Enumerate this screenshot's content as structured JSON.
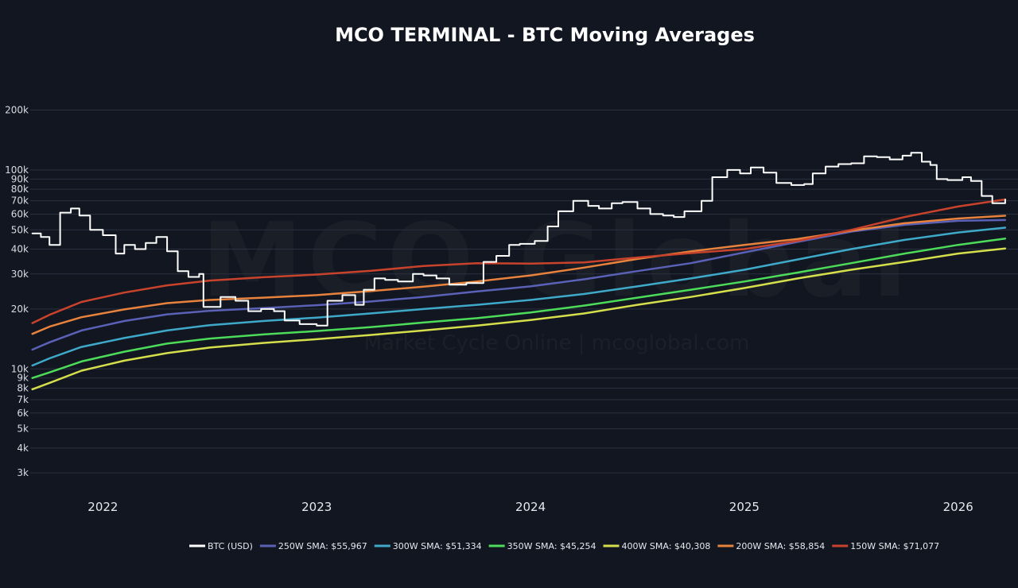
{
  "chart_data": {
    "type": "line",
    "title": "MCO TERMINAL - BTC Moving Averages",
    "watermark": {
      "main": "MCO Global",
      "sub": "Market Cycle Online | mcoglobal.com"
    },
    "y_scale": "log",
    "ylim": [
      2500,
      260000
    ],
    "xlim": [
      2021.66,
      2026.28
    ],
    "grid": true,
    "legend_position": "bottom",
    "y_ticks": [
      {
        "value": 3000,
        "label": "3k"
      },
      {
        "value": 4000,
        "label": "4k"
      },
      {
        "value": 5000,
        "label": "5k"
      },
      {
        "value": 6000,
        "label": "6k"
      },
      {
        "value": 7000,
        "label": "7k"
      },
      {
        "value": 8000,
        "label": "8k"
      },
      {
        "value": 9000,
        "label": "9k"
      },
      {
        "value": 10000,
        "label": "10k"
      },
      {
        "value": 20000,
        "label": "20k"
      },
      {
        "value": 30000,
        "label": "30k"
      },
      {
        "value": 40000,
        "label": "40k"
      },
      {
        "value": 50000,
        "label": "50k"
      },
      {
        "value": 60000,
        "label": "60k"
      },
      {
        "value": 70000,
        "label": "70k"
      },
      {
        "value": 80000,
        "label": "80k"
      },
      {
        "value": 90000,
        "label": "90k"
      },
      {
        "value": 100000,
        "label": "100k"
      },
      {
        "value": 200000,
        "label": "200k"
      }
    ],
    "x_ticks": [
      {
        "value": 2022.0,
        "label": "2022"
      },
      {
        "value": 2023.0,
        "label": "2023"
      },
      {
        "value": 2024.0,
        "label": "2024"
      },
      {
        "value": 2025.0,
        "label": "2025"
      },
      {
        "value": 2026.0,
        "label": "2026"
      }
    ],
    "series": [
      {
        "name": "BTC (USD)",
        "color": "#ffffff",
        "width": 2,
        "points": [
          [
            2021.67,
            48000
          ],
          [
            2021.71,
            46000
          ],
          [
            2021.75,
            42000
          ],
          [
            2021.8,
            61000
          ],
          [
            2021.85,
            64000
          ],
          [
            2021.89,
            59000
          ],
          [
            2021.94,
            50000
          ],
          [
            2022.0,
            47000
          ],
          [
            2022.06,
            38000
          ],
          [
            2022.1,
            42000
          ],
          [
            2022.15,
            40000
          ],
          [
            2022.2,
            43000
          ],
          [
            2022.25,
            46000
          ],
          [
            2022.3,
            39000
          ],
          [
            2022.35,
            31000
          ],
          [
            2022.4,
            29000
          ],
          [
            2022.45,
            30000
          ],
          [
            2022.47,
            20500
          ],
          [
            2022.55,
            23000
          ],
          [
            2022.62,
            22000
          ],
          [
            2022.68,
            19500
          ],
          [
            2022.74,
            20000
          ],
          [
            2022.8,
            19500
          ],
          [
            2022.85,
            17500
          ],
          [
            2022.92,
            16800
          ],
          [
            2023.0,
            16500
          ],
          [
            2023.05,
            22000
          ],
          [
            2023.12,
            23500
          ],
          [
            2023.18,
            21000
          ],
          [
            2023.22,
            25000
          ],
          [
            2023.27,
            28500
          ],
          [
            2023.32,
            28000
          ],
          [
            2023.38,
            27500
          ],
          [
            2023.45,
            30000
          ],
          [
            2023.5,
            29500
          ],
          [
            2023.56,
            28500
          ],
          [
            2023.62,
            26500
          ],
          [
            2023.7,
            27000
          ],
          [
            2023.78,
            34500
          ],
          [
            2023.84,
            37000
          ],
          [
            2023.9,
            42000
          ],
          [
            2023.95,
            42500
          ],
          [
            2024.02,
            44000
          ],
          [
            2024.08,
            52000
          ],
          [
            2024.13,
            62000
          ],
          [
            2024.2,
            70000
          ],
          [
            2024.27,
            66000
          ],
          [
            2024.32,
            64000
          ],
          [
            2024.38,
            68000
          ],
          [
            2024.43,
            69000
          ],
          [
            2024.5,
            64000
          ],
          [
            2024.56,
            60000
          ],
          [
            2024.62,
            59000
          ],
          [
            2024.67,
            58000
          ],
          [
            2024.72,
            62000
          ],
          [
            2024.8,
            70000
          ],
          [
            2024.85,
            92000
          ],
          [
            2024.92,
            100000
          ],
          [
            2024.98,
            96000
          ],
          [
            2025.03,
            103000
          ],
          [
            2025.09,
            97000
          ],
          [
            2025.15,
            86000
          ],
          [
            2025.22,
            84000
          ],
          [
            2025.28,
            85000
          ],
          [
            2025.32,
            96000
          ],
          [
            2025.38,
            104000
          ],
          [
            2025.44,
            107000
          ],
          [
            2025.5,
            108000
          ],
          [
            2025.56,
            117000
          ],
          [
            2025.62,
            116000
          ],
          [
            2025.68,
            113000
          ],
          [
            2025.74,
            118000
          ],
          [
            2025.78,
            122000
          ],
          [
            2025.83,
            110000
          ],
          [
            2025.87,
            106000
          ],
          [
            2025.9,
            90000
          ],
          [
            2025.95,
            89000
          ],
          [
            2026.02,
            92000
          ],
          [
            2026.06,
            88000
          ],
          [
            2026.11,
            74000
          ],
          [
            2026.16,
            68000
          ],
          [
            2026.22,
            71000
          ]
        ]
      },
      {
        "name": "250W SMA: $55,967",
        "color": "#5a61b6",
        "width": 2.5,
        "points": [
          [
            2021.67,
            12500
          ],
          [
            2021.75,
            13600
          ],
          [
            2021.9,
            15600
          ],
          [
            2022.1,
            17400
          ],
          [
            2022.3,
            18800
          ],
          [
            2022.5,
            19600
          ],
          [
            2022.75,
            20200
          ],
          [
            2023.0,
            20900
          ],
          [
            2023.25,
            21800
          ],
          [
            2023.5,
            23000
          ],
          [
            2023.75,
            24500
          ],
          [
            2024.0,
            26000
          ],
          [
            2024.25,
            28200
          ],
          [
            2024.5,
            31000
          ],
          [
            2024.75,
            34000
          ],
          [
            2025.0,
            38500
          ],
          [
            2025.25,
            43500
          ],
          [
            2025.5,
            49000
          ],
          [
            2025.75,
            53000
          ],
          [
            2026.0,
            55500
          ],
          [
            2026.22,
            56000
          ]
        ]
      },
      {
        "name": "300W SMA: $51,334",
        "color": "#3fa9c9",
        "width": 2.5,
        "points": [
          [
            2021.67,
            10400
          ],
          [
            2021.75,
            11300
          ],
          [
            2021.9,
            12900
          ],
          [
            2022.1,
            14300
          ],
          [
            2022.3,
            15600
          ],
          [
            2022.5,
            16600
          ],
          [
            2022.75,
            17400
          ],
          [
            2023.0,
            18100
          ],
          [
            2023.25,
            19000
          ],
          [
            2023.5,
            20000
          ],
          [
            2023.75,
            21000
          ],
          [
            2024.0,
            22200
          ],
          [
            2024.25,
            23800
          ],
          [
            2024.5,
            26000
          ],
          [
            2024.75,
            28500
          ],
          [
            2025.0,
            31500
          ],
          [
            2025.25,
            35500
          ],
          [
            2025.5,
            40000
          ],
          [
            2025.75,
            44500
          ],
          [
            2026.0,
            48500
          ],
          [
            2026.22,
            51300
          ]
        ]
      },
      {
        "name": "350W SMA: $45,254",
        "color": "#4ddb5a",
        "width": 2.5,
        "points": [
          [
            2021.67,
            9000
          ],
          [
            2021.75,
            9600
          ],
          [
            2021.9,
            10900
          ],
          [
            2022.1,
            12200
          ],
          [
            2022.3,
            13400
          ],
          [
            2022.5,
            14200
          ],
          [
            2022.75,
            14900
          ],
          [
            2023.0,
            15500
          ],
          [
            2023.25,
            16200
          ],
          [
            2023.5,
            17100
          ],
          [
            2023.75,
            18000
          ],
          [
            2024.0,
            19200
          ],
          [
            2024.25,
            20800
          ],
          [
            2024.5,
            22800
          ],
          [
            2024.75,
            25000
          ],
          [
            2025.0,
            27500
          ],
          [
            2025.25,
            30500
          ],
          [
            2025.5,
            34000
          ],
          [
            2025.75,
            38000
          ],
          [
            2026.0,
            42000
          ],
          [
            2026.22,
            45200
          ]
        ]
      },
      {
        "name": "400W SMA: $40,308",
        "color": "#d5de4b",
        "width": 2.5,
        "points": [
          [
            2021.67,
            7900
          ],
          [
            2021.75,
            8500
          ],
          [
            2021.9,
            9800
          ],
          [
            2022.1,
            11000
          ],
          [
            2022.3,
            12000
          ],
          [
            2022.5,
            12800
          ],
          [
            2022.75,
            13500
          ],
          [
            2023.0,
            14100
          ],
          [
            2023.25,
            14800
          ],
          [
            2023.5,
            15600
          ],
          [
            2023.75,
            16500
          ],
          [
            2024.0,
            17600
          ],
          [
            2024.25,
            19000
          ],
          [
            2024.5,
            21000
          ],
          [
            2024.75,
            23000
          ],
          [
            2025.0,
            25500
          ],
          [
            2025.25,
            28500
          ],
          [
            2025.5,
            31500
          ],
          [
            2025.75,
            34500
          ],
          [
            2026.0,
            38000
          ],
          [
            2026.22,
            40300
          ]
        ]
      },
      {
        "name": "200W SMA: $58,854",
        "color": "#e8823c",
        "width": 2.5,
        "points": [
          [
            2021.67,
            15000
          ],
          [
            2021.75,
            16300
          ],
          [
            2021.9,
            18200
          ],
          [
            2022.1,
            19900
          ],
          [
            2022.3,
            21400
          ],
          [
            2022.5,
            22200
          ],
          [
            2022.75,
            22800
          ],
          [
            2023.0,
            23500
          ],
          [
            2023.25,
            24600
          ],
          [
            2023.5,
            25900
          ],
          [
            2023.75,
            27500
          ],
          [
            2024.0,
            29500
          ],
          [
            2024.25,
            32300
          ],
          [
            2024.5,
            35700
          ],
          [
            2024.75,
            39000
          ],
          [
            2025.0,
            42000
          ],
          [
            2025.25,
            45000
          ],
          [
            2025.5,
            49500
          ],
          [
            2025.75,
            54000
          ],
          [
            2026.0,
            57000
          ],
          [
            2026.22,
            58850
          ]
        ]
      },
      {
        "name": "150W SMA: $71,077",
        "color": "#c9432c",
        "width": 2.5,
        "points": [
          [
            2021.67,
            17000
          ],
          [
            2021.75,
            18700
          ],
          [
            2021.9,
            21700
          ],
          [
            2022.1,
            24200
          ],
          [
            2022.3,
            26300
          ],
          [
            2022.5,
            27800
          ],
          [
            2022.75,
            28900
          ],
          [
            2023.0,
            29800
          ],
          [
            2023.25,
            31100
          ],
          [
            2023.5,
            32900
          ],
          [
            2023.75,
            34000
          ],
          [
            2024.0,
            33800
          ],
          [
            2024.25,
            34300
          ],
          [
            2024.5,
            36300
          ],
          [
            2024.75,
            38200
          ],
          [
            2025.0,
            40000
          ],
          [
            2025.25,
            44000
          ],
          [
            2025.5,
            50000
          ],
          [
            2025.75,
            58000
          ],
          [
            2026.0,
            65500
          ],
          [
            2026.22,
            71077
          ]
        ]
      }
    ]
  }
}
